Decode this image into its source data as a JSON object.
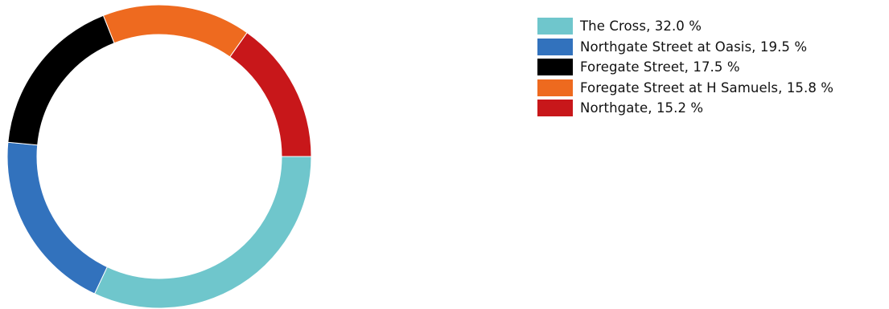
{
  "chart_data": {
    "type": "pie",
    "title": "",
    "unit": "%",
    "legend_position": "right",
    "donut": true,
    "slices": [
      {
        "label": "The Cross",
        "value": 32.0,
        "color": "#6fc6cc",
        "legend_text": "The Cross, 32.0 %"
      },
      {
        "label": "Northgate Street at Oasis",
        "value": 19.5,
        "color": "#3272bd",
        "legend_text": "Northgate Street at Oasis, 19.5 %"
      },
      {
        "label": "Foregate Street",
        "value": 17.5,
        "color": "#000000",
        "legend_text": "Foregate Street, 17.5 %"
      },
      {
        "label": "Foregate Street at H Samuels",
        "value": 15.8,
        "color": "#ee6a1f",
        "legend_text": "Foregate Street at H Samuels, 15.8 %"
      },
      {
        "label": "Northgate",
        "value": 15.2,
        "color": "#c8171a",
        "legend_text": "Northgate, 15.2 %"
      }
    ]
  }
}
